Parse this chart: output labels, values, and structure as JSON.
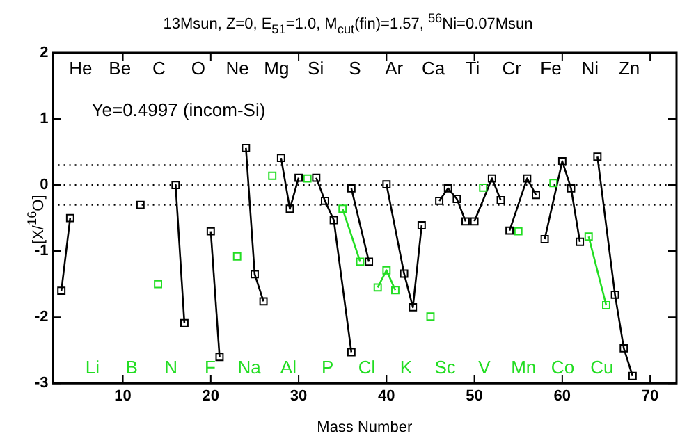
{
  "chart_data": {
    "type": "line",
    "title": "13Msun, Z=0, E$_{51}$=1.0, M$_{cut}$(fin)=1.57, $^{56}$Ni=0.07Msun",
    "xlabel": "Mass Number",
    "ylabel": "[X/$^{16}$O]",
    "xlim": [
      2,
      73
    ],
    "xticks": [
      10,
      20,
      30,
      40,
      50,
      60,
      70
    ],
    "ylim": [
      -3,
      2
    ],
    "yticks": [
      -3,
      -2,
      -1,
      0,
      1,
      2
    ],
    "grid": false,
    "legend": false,
    "marker": "square",
    "line_style": "solid",
    "ref_lines": [
      {
        "axis": "y",
        "value": 0.3,
        "color": "#000000",
        "line_style": "dotted"
      },
      {
        "axis": "y",
        "value": 0,
        "color": "#000000",
        "line_style": "dotted"
      },
      {
        "axis": "y",
        "value": -0.3,
        "color": "#000000",
        "line_style": "dotted"
      }
    ],
    "annotations": [
      "Ye=0.4997 (incom-Si)",
      "He",
      "Be",
      "C",
      "O",
      "Ne",
      "Mg",
      "Si",
      "S",
      "Ar",
      "Ca",
      "Ti",
      "Cr",
      "Fe",
      "Ni",
      "Zn",
      "Li",
      "B",
      "N",
      "F",
      "Na",
      "Al",
      "P",
      "Cl",
      "K",
      "Sc",
      "V",
      "Mn",
      "Co",
      "Cu"
    ],
    "series": [
      {
        "color": "#000000",
        "x": [
          3,
          4
        ],
        "values": [
          -1.6,
          -0.5
        ]
      },
      {
        "color": "#000000",
        "x": [
          12
        ],
        "values": [
          -0.3
        ]
      },
      {
        "color": "#22dd22",
        "x": [
          14
        ],
        "values": [
          -1.5
        ]
      },
      {
        "color": "#000000",
        "x": [
          16,
          17
        ],
        "values": [
          0,
          -2.09
        ]
      },
      {
        "color": "#000000",
        "x": [
          20,
          21
        ],
        "values": [
          -0.7,
          -2.6
        ]
      },
      {
        "color": "#22dd22",
        "x": [
          23
        ],
        "values": [
          -1.08
        ]
      },
      {
        "color": "#000000",
        "x": [
          24,
          25,
          26
        ],
        "values": [
          0.56,
          -1.35,
          -1.76
        ]
      },
      {
        "color": "#22dd22",
        "x": [
          27
        ],
        "values": [
          0.14
        ]
      },
      {
        "color": "#000000",
        "x": [
          28,
          29,
          30
        ],
        "values": [
          0.41,
          -0.36,
          0.11
        ]
      },
      {
        "color": "#22dd22",
        "x": [
          31
        ],
        "values": [
          0.1
        ]
      },
      {
        "color": "#000000",
        "x": [
          32,
          33,
          34,
          36
        ],
        "values": [
          0.11,
          -0.24,
          -0.53,
          -2.53
        ]
      },
      {
        "color": "#22dd22",
        "x": [
          35,
          37
        ],
        "values": [
          -0.36,
          -1.16
        ]
      },
      {
        "color": "#000000",
        "x": [
          36,
          38
        ],
        "values": [
          -0.05,
          -1.16
        ]
      },
      {
        "color": "#22dd22",
        "x": [
          39,
          40,
          41
        ],
        "values": [
          -1.55,
          -1.29,
          -1.59
        ]
      },
      {
        "color": "#000000",
        "x": [
          40,
          42,
          43,
          44
        ],
        "values": [
          0.01,
          -1.34,
          -1.85,
          -0.61
        ]
      },
      {
        "color": "#22dd22",
        "x": [
          45
        ],
        "values": [
          -1.99
        ]
      },
      {
        "color": "#000000",
        "x": [
          46,
          47,
          48,
          49
        ],
        "values": [
          -0.24,
          -0.05,
          -0.21,
          -0.55
        ]
      },
      {
        "color": "#22dd22",
        "x": [
          51
        ],
        "values": [
          -0.04
        ]
      },
      {
        "color": "#000000",
        "x": [
          50,
          52,
          53
        ],
        "values": [
          -0.55,
          0.1,
          -0.23
        ]
      },
      {
        "color": "#22dd22",
        "x": [
          55
        ],
        "values": [
          -0.7
        ]
      },
      {
        "color": "#000000",
        "x": [
          54,
          56,
          57
        ],
        "values": [
          -0.69,
          0.1,
          -0.15
        ]
      },
      {
        "color": "#22dd22",
        "x": [
          59
        ],
        "values": [
          0.03
        ]
      },
      {
        "color": "#000000",
        "x": [
          58,
          60,
          61,
          62
        ],
        "values": [
          -0.82,
          0.36,
          -0.05,
          -0.86
        ]
      },
      {
        "color": "#22dd22",
        "x": [
          63,
          65
        ],
        "values": [
          -0.78,
          -1.82
        ]
      },
      {
        "color": "#000000",
        "x": [
          64,
          66,
          67,
          68
        ],
        "values": [
          0.43,
          -1.66,
          -2.47,
          -2.89
        ]
      }
    ]
  }
}
